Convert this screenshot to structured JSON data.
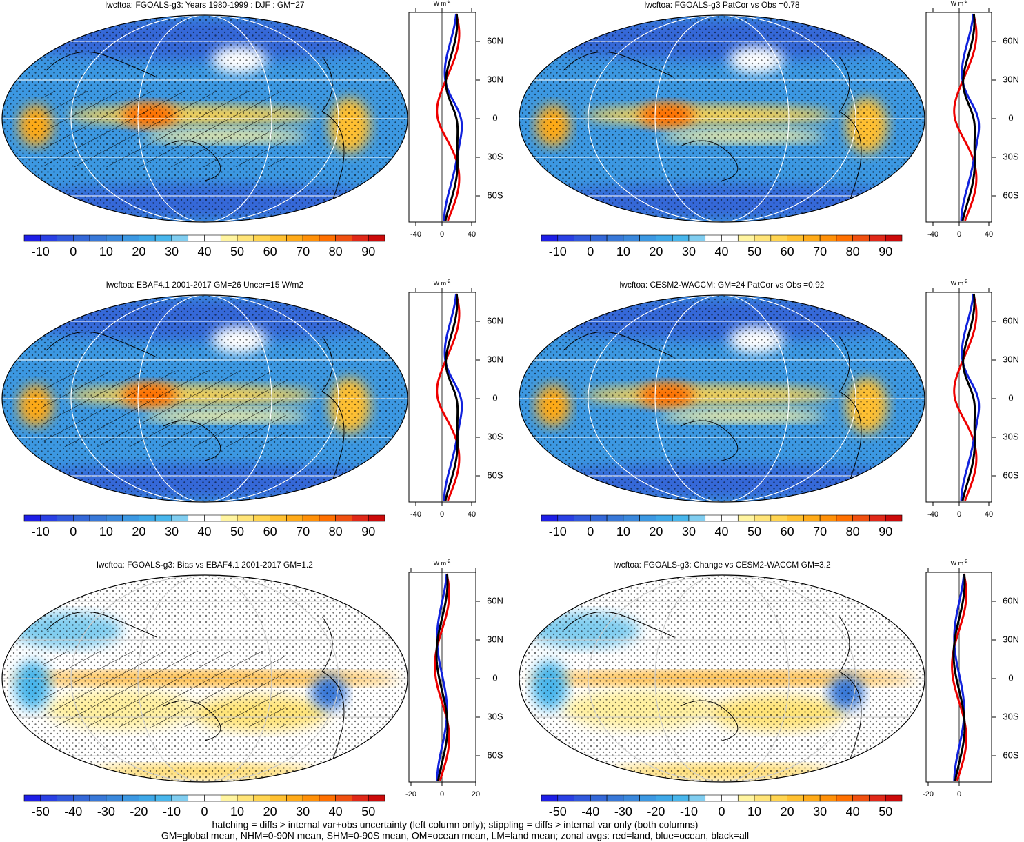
{
  "panels": [
    {
      "title": "lwcftoa: FGOALS-g3: Years 1980-1999 : DJF : GM=27",
      "colorbar_labels": [
        "-10",
        "0",
        "10",
        "20",
        "30",
        "40",
        "50",
        "60",
        "70",
        "80",
        "90"
      ],
      "zonal_x_labels": [
        "-40",
        "0",
        "40"
      ],
      "zonal_y_labels": [
        "60N",
        "30N",
        "0",
        "30S",
        "60S"
      ],
      "zonal_unit": "W m",
      "zonal_unit_exp": "-2"
    },
    {
      "title": "lwcftoa: FGOALS-g3 PatCor vs Obs =0.78",
      "colorbar_labels": [
        "-10",
        "0",
        "10",
        "20",
        "30",
        "40",
        "50",
        "60",
        "70",
        "80",
        "90"
      ],
      "zonal_x_labels": [
        "-40",
        "0",
        "40"
      ],
      "zonal_y_labels": [
        "60N",
        "30N",
        "0",
        "30S",
        "60S"
      ],
      "zonal_unit": "W m",
      "zonal_unit_exp": "-2"
    },
    {
      "title": "lwcftoa: EBAF4.1 2001-2017 GM=26 Uncer=15 W/m2",
      "colorbar_labels": [
        "-10",
        "0",
        "10",
        "20",
        "30",
        "40",
        "50",
        "60",
        "70",
        "80",
        "90"
      ],
      "zonal_x_labels": [
        "-40",
        "0",
        "40"
      ],
      "zonal_y_labels": [
        "60N",
        "30N",
        "0",
        "30S",
        "60S"
      ],
      "zonal_unit": "W m",
      "zonal_unit_exp": "-2"
    },
    {
      "title": "lwcftoa: CESM2-WACCM: GM=24 PatCor vs Obs =0.92",
      "colorbar_labels": [
        "-10",
        "0",
        "10",
        "20",
        "30",
        "40",
        "50",
        "60",
        "70",
        "80",
        "90"
      ],
      "zonal_x_labels": [
        "-40",
        "0",
        "40"
      ],
      "zonal_y_labels": [
        "60N",
        "30N",
        "0",
        "30S",
        "60S"
      ],
      "zonal_unit": "W m",
      "zonal_unit_exp": "-2"
    },
    {
      "title": "lwcftoa: FGOALS-g3: Bias vs EBAF4.1 2001-2017 GM=1.2",
      "colorbar_labels": [
        "-50",
        "-40",
        "-30",
        "-20",
        "-10",
        "0",
        "10",
        "20",
        "30",
        "40",
        "50"
      ],
      "zonal_x_labels": [
        "-20",
        "0",
        "20"
      ],
      "zonal_y_labels": [
        "60N",
        "30N",
        "0",
        "30S",
        "60S"
      ],
      "zonal_unit": "W m",
      "zonal_unit_exp": "-2"
    },
    {
      "title": "lwcftoa: FGOALS-g3: Change vs CESM2-WACCM GM=3.2",
      "colorbar_labels": [
        "-50",
        "-40",
        "-30",
        "-20",
        "-10",
        "0",
        "10",
        "20",
        "30",
        "40",
        "50"
      ],
      "zonal_x_labels": [
        "-20",
        "0"
      ],
      "zonal_y_labels": [
        "60N",
        "30N",
        "0",
        "30S",
        "60S"
      ],
      "zonal_unit": "W m",
      "zonal_unit_exp": "-2"
    }
  ],
  "footer": [
    "hatching = diffs > internal var+obs uncertainty (left column only); stippling = diffs > internal var only (both columns)",
    "GM=global mean, NHM=0-90N mean, SHM=0-90S mean, OM=ocean mean, LM=land mean; zonal avgs: red=land, blue=ocean, black=all"
  ]
}
